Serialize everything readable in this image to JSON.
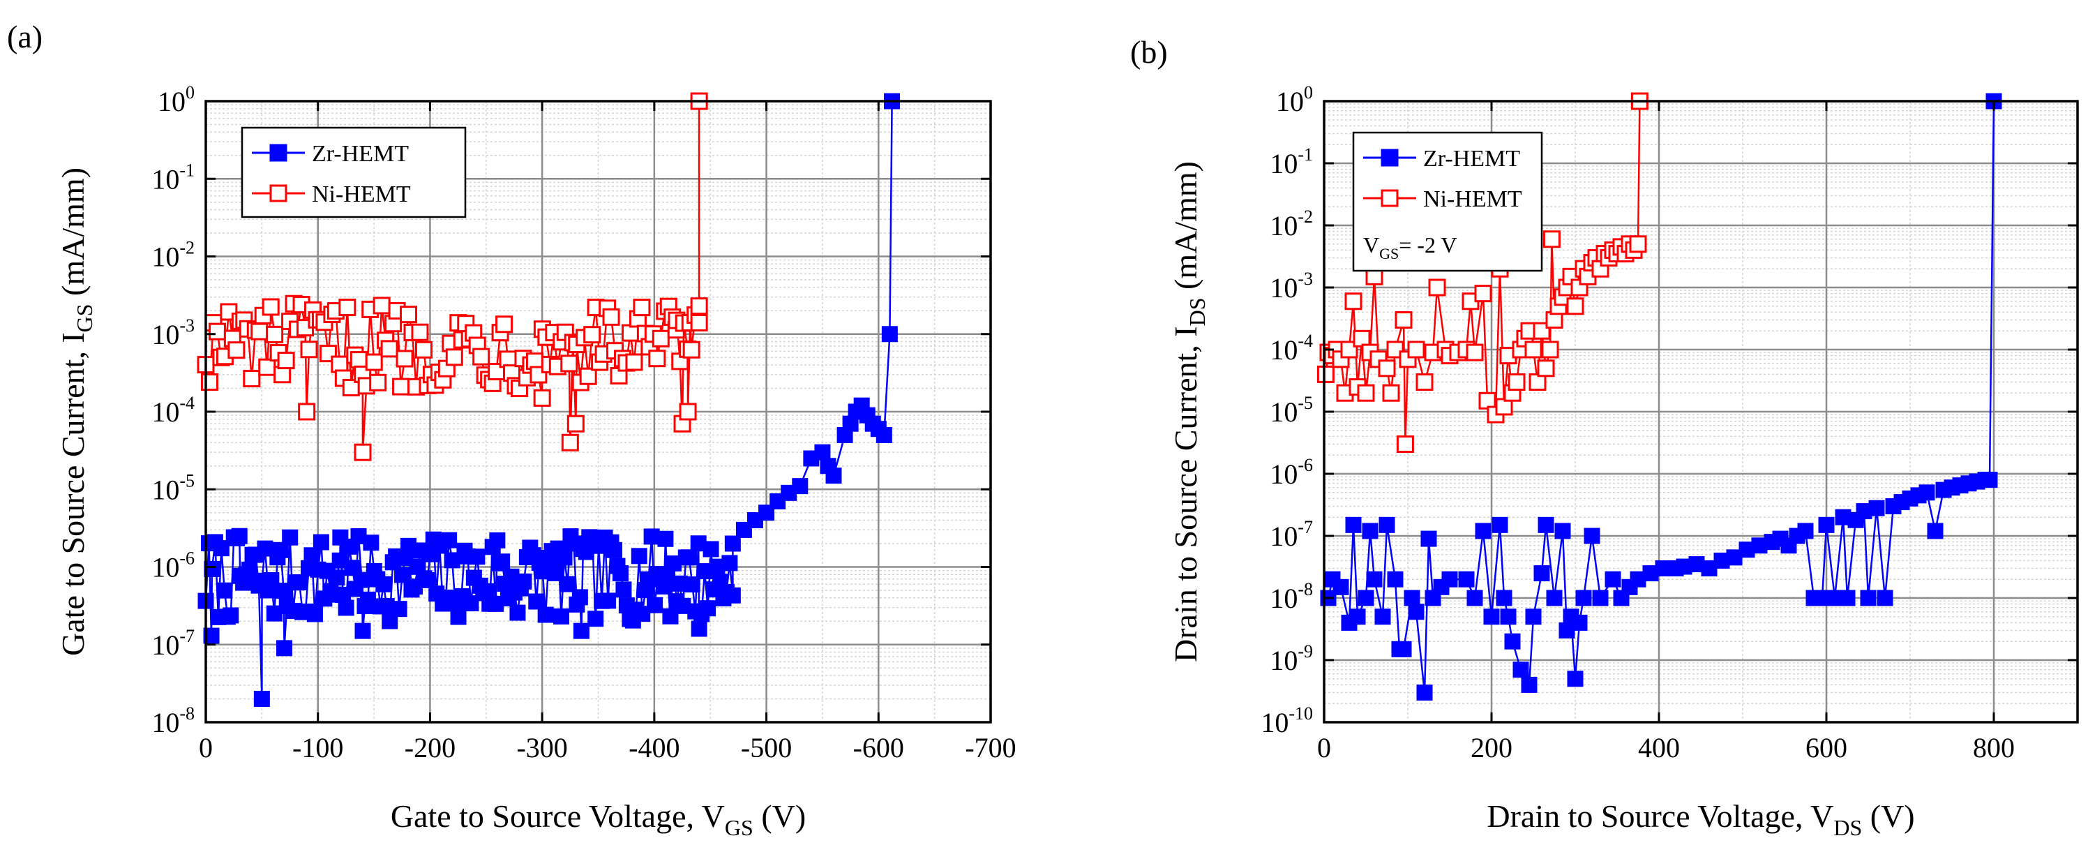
{
  "chart_data": [
    {
      "type": "scatter",
      "panel_label": "(a)",
      "title": "",
      "xlabel": {
        "main": "Gate to Source Voltage, V",
        "sub": "GS",
        "suffix": " (V)"
      },
      "ylabel": {
        "main": "Gate to Source Current, I",
        "sub": "GS",
        "suffix": " (mA/mm)"
      },
      "x_scale": "linear",
      "x_reversed": true,
      "xlim": [
        0,
        -700
      ],
      "x_ticks": [
        0,
        -100,
        -200,
        -300,
        -400,
        -500,
        -600,
        -700
      ],
      "x_tick_labels": [
        "0",
        "-100",
        "-200",
        "-300",
        "-400",
        "-500",
        "-600",
        "-700"
      ],
      "y_scale": "log",
      "ylim": [
        1e-08,
        1
      ],
      "y_tick_exponents": [
        0,
        -1,
        -2,
        -3,
        -4,
        -5,
        -6,
        -7,
        -8
      ],
      "grid": true,
      "minor_grid": true,
      "legend_position": "top-left",
      "series": [
        {
          "name": "Zr-HEMT",
          "color": "#0000ff",
          "marker": "square-filled",
          "noise_band": {
            "x_start": 0,
            "x_end": -470,
            "log_min": -6.7,
            "log_max": -5.6,
            "count": 170
          },
          "points": [
            [
              -5,
              1.3e-07
            ],
            [
              -50,
              2e-08
            ],
            [
              -70,
              9e-08
            ],
            [
              -140,
              1.5e-07
            ],
            [
              -335,
              1.5e-07
            ],
            [
              -440,
              1.6e-07
            ],
            [
              -30,
              2.5e-06
            ],
            [
              -120,
              2.4e-06
            ],
            [
              -260,
              2.2e-06
            ],
            [
              -410,
              2.3e-06
            ],
            [
              -470,
              2e-06
            ],
            [
              -480,
              3e-06
            ],
            [
              -490,
              4e-06
            ],
            [
              -500,
              5e-06
            ],
            [
              -510,
              7e-06
            ],
            [
              -520,
              9e-06
            ],
            [
              -530,
              1.1e-05
            ],
            [
              -540,
              2.5e-05
            ],
            [
              -550,
              3e-05
            ],
            [
              -555,
              2e-05
            ],
            [
              -560,
              1.5e-05
            ],
            [
              -570,
              5e-05
            ],
            [
              -575,
              7e-05
            ],
            [
              -580,
              0.0001
            ],
            [
              -585,
              0.00012
            ],
            [
              -590,
              9e-05
            ],
            [
              -595,
              7e-05
            ],
            [
              -600,
              6e-05
            ],
            [
              -605,
              5e-05
            ],
            [
              -610,
              0.001
            ],
            [
              -612,
              1
            ]
          ]
        },
        {
          "name": "Ni-HEMT",
          "color": "#ff0000",
          "marker": "square-open",
          "noise_band": {
            "x_start": 0,
            "x_end": -440,
            "log_min": -3.7,
            "log_max": -2.6,
            "count": 130
          },
          "points": [
            [
              -140,
              3e-05
            ],
            [
              -325,
              4e-05
            ],
            [
              -330,
              7e-05
            ],
            [
              -425,
              7e-05
            ],
            [
              -430,
              0.0001
            ],
            [
              -90,
              0.0001
            ],
            [
              -300,
              0.00015
            ],
            [
              -420,
              0.0015
            ],
            [
              -432,
              0.0014
            ],
            [
              -440,
              0.0014
            ],
            [
              -440,
              1
            ]
          ]
        }
      ]
    },
    {
      "type": "scatter",
      "panel_label": "(b)",
      "title": "",
      "xlabel": {
        "main": "Drain to Source Voltage, V",
        "sub": "DS",
        "suffix": " (V)"
      },
      "ylabel": {
        "main": "Drain to Source Current, I",
        "sub": "DS",
        "suffix": " (mA/mm)"
      },
      "x_scale": "linear",
      "x_reversed": false,
      "xlim": [
        0,
        900
      ],
      "x_ticks": [
        0,
        200,
        400,
        600,
        800
      ],
      "x_tick_labels": [
        "0",
        "200",
        "400",
        "600",
        "800"
      ],
      "y_scale": "log",
      "ylim": [
        1e-10,
        1
      ],
      "y_tick_exponents": [
        0,
        -1,
        -2,
        -3,
        -4,
        -5,
        -6,
        -7,
        -8,
        -9,
        -10
      ],
      "grid": true,
      "minor_grid": true,
      "legend_position": "top-left",
      "annotation": {
        "main": "V",
        "sub": "GS",
        "suffix": "= -2 V"
      },
      "series": [
        {
          "name": "Zr-HEMT",
          "color": "#0000ff",
          "marker": "square-filled",
          "points": [
            [
              5,
              1e-08
            ],
            [
              10,
              2e-08
            ],
            [
              20,
              1.5e-08
            ],
            [
              30,
              4e-09
            ],
            [
              35,
              1.5e-07
            ],
            [
              40,
              5e-09
            ],
            [
              50,
              1e-08
            ],
            [
              55,
              1.2e-07
            ],
            [
              60,
              2e-08
            ],
            [
              70,
              5e-09
            ],
            [
              75,
              1.5e-07
            ],
            [
              85,
              2e-08
            ],
            [
              90,
              1.5e-09
            ],
            [
              95,
              1.5e-09
            ],
            [
              105,
              1e-08
            ],
            [
              110,
              6e-09
            ],
            [
              120,
              3e-10
            ],
            [
              125,
              9e-08
            ],
            [
              130,
              1e-08
            ],
            [
              140,
              1.5e-08
            ],
            [
              150,
              2e-08
            ],
            [
              170,
              2e-08
            ],
            [
              180,
              1e-08
            ],
            [
              190,
              1.2e-07
            ],
            [
              200,
              5e-09
            ],
            [
              210,
              1.5e-07
            ],
            [
              215,
              1e-08
            ],
            [
              220,
              5e-09
            ],
            [
              225,
              2e-09
            ],
            [
              235,
              7e-10
            ],
            [
              245,
              4e-10
            ],
            [
              250,
              5e-09
            ],
            [
              260,
              2.5e-08
            ],
            [
              265,
              1.5e-07
            ],
            [
              275,
              1e-08
            ],
            [
              285,
              1.2e-07
            ],
            [
              290,
              3e-09
            ],
            [
              295,
              5e-09
            ],
            [
              300,
              5e-10
            ],
            [
              305,
              4e-09
            ],
            [
              310,
              1e-08
            ],
            [
              320,
              1e-07
            ],
            [
              330,
              1e-08
            ],
            [
              345,
              2e-08
            ],
            [
              355,
              1e-08
            ],
            [
              365,
              1.5e-08
            ],
            [
              375,
              2e-08
            ],
            [
              390,
              2.5e-08
            ],
            [
              405,
              3e-08
            ],
            [
              420,
              3e-08
            ],
            [
              430,
              3.2e-08
            ],
            [
              445,
              3.5e-08
            ],
            [
              460,
              3e-08
            ],
            [
              475,
              4e-08
            ],
            [
              490,
              4.5e-08
            ],
            [
              505,
              6e-08
            ],
            [
              520,
              7e-08
            ],
            [
              535,
              8e-08
            ],
            [
              545,
              9e-08
            ],
            [
              555,
              7e-08
            ],
            [
              565,
              1e-07
            ],
            [
              575,
              1.2e-07
            ],
            [
              585,
              1e-08
            ],
            [
              595,
              1e-08
            ],
            [
              600,
              1.5e-07
            ],
            [
              610,
              1e-08
            ],
            [
              620,
              2e-07
            ],
            [
              625,
              1e-08
            ],
            [
              635,
              1.8e-07
            ],
            [
              645,
              2.5e-07
            ],
            [
              650,
              1e-08
            ],
            [
              660,
              2.8e-07
            ],
            [
              670,
              1e-08
            ],
            [
              680,
              3e-07
            ],
            [
              690,
              3.5e-07
            ],
            [
              700,
              4e-07
            ],
            [
              710,
              4.5e-07
            ],
            [
              720,
              5e-07
            ],
            [
              730,
              1.2e-07
            ],
            [
              740,
              5.5e-07
            ],
            [
              750,
              6e-07
            ],
            [
              760,
              6.5e-07
            ],
            [
              770,
              7e-07
            ],
            [
              780,
              7.5e-07
            ],
            [
              790,
              8e-07
            ],
            [
              795,
              8e-07
            ],
            [
              800,
              1
            ]
          ]
        },
        {
          "name": "Ni-HEMT",
          "color": "#ff0000",
          "marker": "square-open",
          "points": [
            [
              2,
              4e-05
            ],
            [
              5,
              9e-05
            ],
            [
              10,
              8e-05
            ],
            [
              15,
              0.0001
            ],
            [
              20,
              7e-05
            ],
            [
              25,
              2e-05
            ],
            [
              30,
              0.0001
            ],
            [
              35,
              0.0006
            ],
            [
              40,
              2.5e-05
            ],
            [
              45,
              0.00015
            ],
            [
              50,
              2e-05
            ],
            [
              55,
              9e-05
            ],
            [
              60,
              0.0015
            ],
            [
              65,
              7e-05
            ],
            [
              75,
              5e-05
            ],
            [
              80,
              2e-05
            ],
            [
              85,
              0.0001
            ],
            [
              95,
              0.0003
            ],
            [
              97,
              3e-06
            ],
            [
              100,
              7e-05
            ],
            [
              110,
              0.0001
            ],
            [
              120,
              3e-05
            ],
            [
              130,
              9e-05
            ],
            [
              135,
              0.001
            ],
            [
              145,
              0.0001
            ],
            [
              150,
              8e-05
            ],
            [
              160,
              9e-05
            ],
            [
              170,
              0.0001
            ],
            [
              175,
              0.0006
            ],
            [
              180,
              9e-05
            ],
            [
              190,
              0.0008
            ],
            [
              195,
              1.5e-05
            ],
            [
              205,
              9e-06
            ],
            [
              210,
              0.002
            ],
            [
              215,
              1.2e-05
            ],
            [
              220,
              8e-05
            ],
            [
              225,
              2e-05
            ],
            [
              230,
              3e-05
            ],
            [
              235,
              0.0001
            ],
            [
              240,
              0.00015
            ],
            [
              245,
              0.0002
            ],
            [
              250,
              0.0001
            ],
            [
              255,
              3e-05
            ],
            [
              260,
              0.0002
            ],
            [
              265,
              5e-05
            ],
            [
              270,
              0.0001
            ],
            [
              272,
              0.006
            ],
            [
              275,
              0.0003
            ],
            [
              280,
              0.0005
            ],
            [
              285,
              0.0007
            ],
            [
              290,
              0.001
            ],
            [
              295,
              0.0015
            ],
            [
              300,
              0.0005
            ],
            [
              305,
              0.001
            ],
            [
              310,
              0.002
            ],
            [
              315,
              0.0015
            ],
            [
              320,
              0.0025
            ],
            [
              325,
              0.003
            ],
            [
              330,
              0.002
            ],
            [
              335,
              0.0035
            ],
            [
              340,
              0.003
            ],
            [
              345,
              0.004
            ],
            [
              350,
              0.0035
            ],
            [
              355,
              0.0045
            ],
            [
              360,
              0.0035
            ],
            [
              365,
              0.005
            ],
            [
              370,
              0.004
            ],
            [
              375,
              0.005
            ],
            [
              377,
              1
            ]
          ]
        }
      ]
    }
  ]
}
